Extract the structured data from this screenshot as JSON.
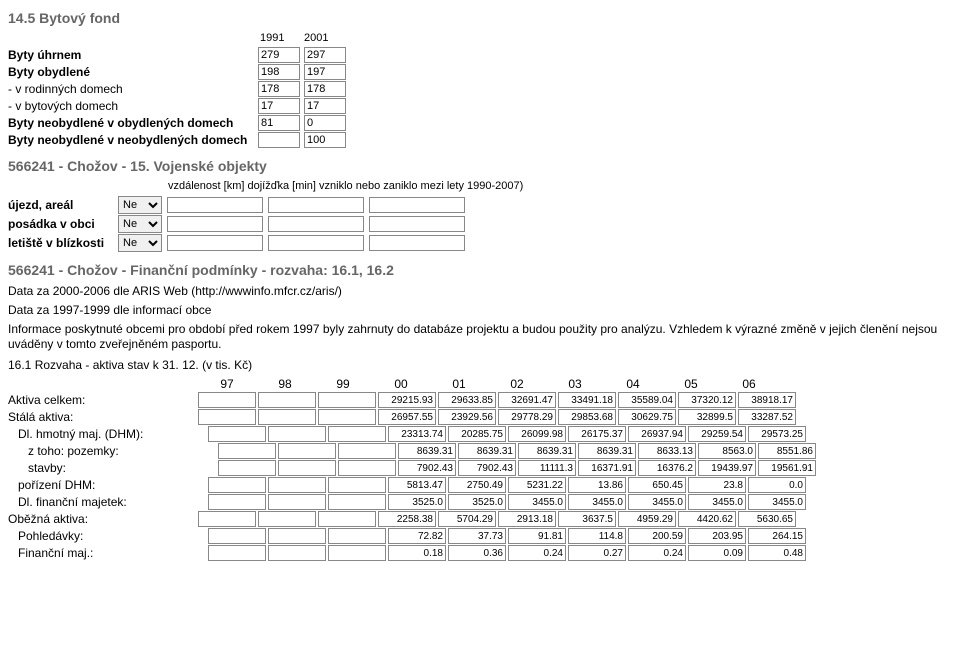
{
  "bytovy_fond": {
    "heading": "14.5 Bytový fond",
    "years": [
      "1991",
      "2001"
    ],
    "rows": [
      {
        "label": "Byty úhrnem",
        "bold": true,
        "indent": 0,
        "vals": [
          "279",
          "297"
        ]
      },
      {
        "label": "Byty obydlené",
        "bold": true,
        "indent": 0,
        "vals": [
          "198",
          "197"
        ]
      },
      {
        "label": "- v rodinných domech",
        "bold": false,
        "indent": 0,
        "vals": [
          "178",
          "178"
        ]
      },
      {
        "label": "- v bytových domech",
        "bold": false,
        "indent": 0,
        "vals": [
          "17",
          "17"
        ]
      },
      {
        "label": "Byty neobydlené v obydlených domech",
        "bold": true,
        "indent": 0,
        "vals": [
          "81",
          "0"
        ]
      },
      {
        "label": "Byty neobydlené v neobydlených domech",
        "bold": true,
        "indent": 0,
        "vals": [
          "",
          "100"
        ]
      }
    ]
  },
  "vojenske": {
    "heading": "566241 - Chožov - 15. Vojenské objekty",
    "col_header": "vzdálenost [km] dojížďka [min] vzniklo nebo zaniklo mezi lety 1990-2007)",
    "option": "Ne",
    "rows": [
      {
        "label": "újezd, areál"
      },
      {
        "label": "posádka v obci"
      },
      {
        "label": "letiště v blízkosti"
      }
    ]
  },
  "financni": {
    "heading": "566241 - Chožov - Finanční podmínky - rozvaha: 16.1, 16.2",
    "p1": "Data za 2000-2006 dle ARIS Web (http://wwwinfo.mfcr.cz/aris/)",
    "p2": "Data za 1997-1999 dle informací obce",
    "p3": "Informace poskytnuté obcemi pro období před rokem 1997 byly zahrnuty do databáze projektu a budou použity pro analýzu. Vzhledem k výrazné změně v jejich členění nejsou uváděny v tomto zveřejněném pasportu."
  },
  "rozvaha": {
    "title": "16.1 Rozvaha - aktiva stav k 31. 12. (v tis. Kč)",
    "years": [
      "97",
      "98",
      "99",
      "00",
      "01",
      "02",
      "03",
      "04",
      "05",
      "06"
    ],
    "rows": [
      {
        "label": "Aktiva celkem:",
        "indent": 0,
        "vals": [
          "",
          "",
          "",
          "29215.93",
          "29633.85",
          "32691.47",
          "33491.18",
          "35589.04",
          "37320.12",
          "38918.17"
        ]
      },
      {
        "label": "Stálá aktiva:",
        "indent": 0,
        "vals": [
          "",
          "",
          "",
          "26957.55",
          "23929.56",
          "29778.29",
          "29853.68",
          "30629.75",
          "32899.5",
          "33287.52"
        ]
      },
      {
        "label": "Dl. hmotný maj. (DHM):",
        "indent": 1,
        "vals": [
          "",
          "",
          "",
          "23313.74",
          "20285.75",
          "26099.98",
          "26175.37",
          "26937.94",
          "29259.54",
          "29573.25"
        ]
      },
      {
        "label": "z toho: pozemky:",
        "indent": 2,
        "vals": [
          "",
          "",
          "",
          "8639.31",
          "8639.31",
          "8639.31",
          "8639.31",
          "8633.13",
          "8563.0",
          "8551.86"
        ]
      },
      {
        "label": "stavby:",
        "indent": 2,
        "vals": [
          "",
          "",
          "",
          "7902.43",
          "7902.43",
          "11111.3",
          "16371.91",
          "16376.2",
          "19439.97",
          "19561.91"
        ]
      },
      {
        "label": "pořízení DHM:",
        "indent": 1,
        "vals": [
          "",
          "",
          "",
          "5813.47",
          "2750.49",
          "5231.22",
          "13.86",
          "650.45",
          "23.8",
          "0.0"
        ]
      },
      {
        "label": "Dl. finanční majetek:",
        "indent": 1,
        "vals": [
          "",
          "",
          "",
          "3525.0",
          "3525.0",
          "3455.0",
          "3455.0",
          "3455.0",
          "3455.0",
          "3455.0"
        ]
      },
      {
        "label": "Oběžná aktiva:",
        "indent": 0,
        "vals": [
          "",
          "",
          "",
          "2258.38",
          "5704.29",
          "2913.18",
          "3637.5",
          "4959.29",
          "4420.62",
          "5630.65"
        ]
      },
      {
        "label": "Pohledávky:",
        "indent": 1,
        "vals": [
          "",
          "",
          "",
          "72.82",
          "37.73",
          "91.81",
          "114.8",
          "200.59",
          "203.95",
          "264.15"
        ]
      },
      {
        "label": "Finanční maj.:",
        "indent": 1,
        "vals": [
          "",
          "",
          "",
          "0.18",
          "0.36",
          "0.24",
          "0.27",
          "0.24",
          "0.09",
          "0.48"
        ]
      }
    ]
  }
}
